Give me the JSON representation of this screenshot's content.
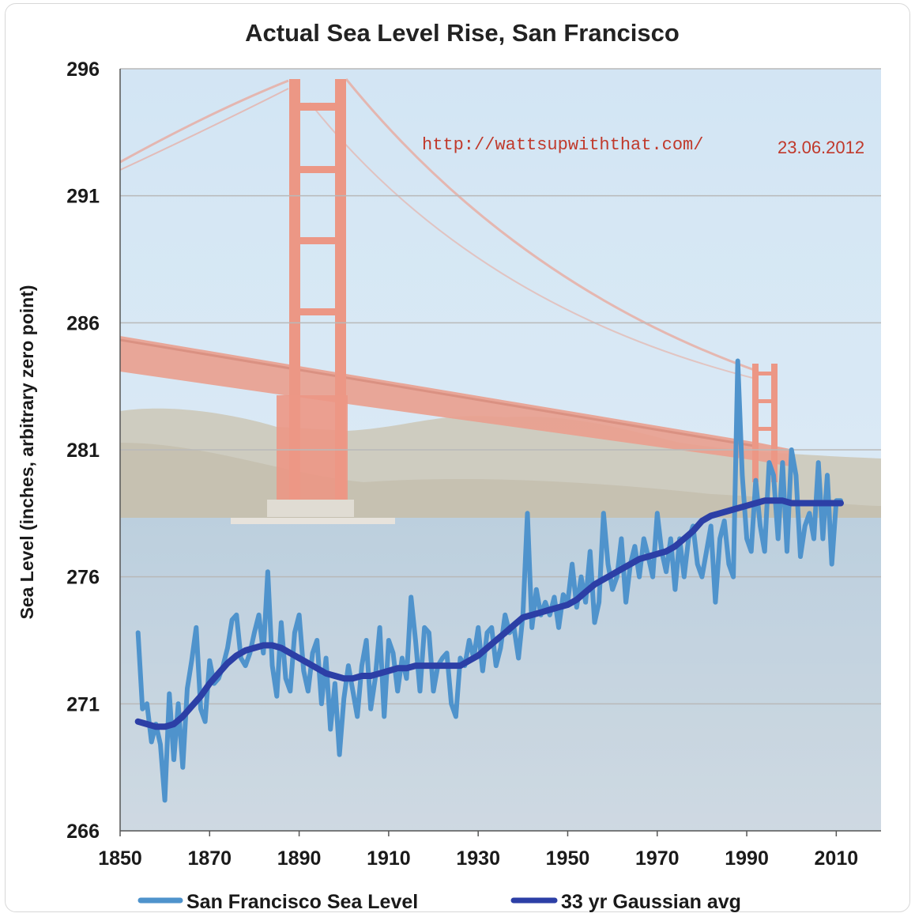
{
  "colors": {
    "raw_series": "#4f93cc",
    "avg_series": "#2c3fa6",
    "grid": "#b9b9b9",
    "annotation": "#c0392b",
    "sky": "#bcd9ef",
    "water": "#a9c0d2",
    "bridge": "#e5735c",
    "hills": "#b7b09a"
  },
  "chart_data": {
    "type": "line",
    "title": "Actual Sea Level Rise, San Francisco",
    "xlabel": "",
    "ylabel": "Sea Level (inches, arbitrary zero point)",
    "xlim": [
      1850,
      2020
    ],
    "ylim": [
      266,
      296
    ],
    "x_ticks": [
      "1850",
      "1870",
      "1890",
      "1910",
      "1930",
      "1950",
      "1970",
      "1990",
      "2010"
    ],
    "y_ticks": [
      "266",
      "271",
      "276",
      "281",
      "286",
      "291",
      "296"
    ],
    "grid": true,
    "legend_position": "bottom",
    "annotations": [
      "http://wattsupwiththat.com/",
      "23.06.2012"
    ],
    "background_image": "golden-gate-bridge-photo",
    "series": [
      {
        "name": "San Francisco Sea Level",
        "x": [
          1854,
          1855,
          1856,
          1857,
          1858,
          1859,
          1860,
          1861,
          1862,
          1863,
          1864,
          1865,
          1866,
          1867,
          1868,
          1869,
          1870,
          1871,
          1872,
          1873,
          1874,
          1875,
          1876,
          1877,
          1878,
          1879,
          1880,
          1881,
          1882,
          1883,
          1884,
          1885,
          1886,
          1887,
          1888,
          1889,
          1890,
          1891,
          1892,
          1893,
          1894,
          1895,
          1896,
          1897,
          1898,
          1899,
          1900,
          1901,
          1902,
          1903,
          1904,
          1905,
          1906,
          1907,
          1908,
          1909,
          1910,
          1911,
          1912,
          1913,
          1914,
          1915,
          1916,
          1917,
          1918,
          1919,
          1920,
          1921,
          1922,
          1923,
          1924,
          1925,
          1926,
          1927,
          1928,
          1929,
          1930,
          1931,
          1932,
          1933,
          1934,
          1935,
          1936,
          1937,
          1938,
          1939,
          1940,
          1941,
          1942,
          1943,
          1944,
          1945,
          1946,
          1947,
          1948,
          1949,
          1950,
          1951,
          1952,
          1953,
          1954,
          1955,
          1956,
          1957,
          1958,
          1959,
          1960,
          1961,
          1962,
          1963,
          1964,
          1965,
          1966,
          1967,
          1968,
          1969,
          1970,
          1971,
          1972,
          1973,
          1974,
          1975,
          1976,
          1977,
          1978,
          1979,
          1980,
          1981,
          1982,
          1983,
          1984,
          1985,
          1986,
          1987,
          1988,
          1989,
          1990,
          1991,
          1992,
          1993,
          1994,
          1995,
          1996,
          1997,
          1998,
          1999,
          2000,
          2001,
          2002,
          2003,
          2004,
          2005,
          2006,
          2007,
          2008,
          2009,
          2010,
          2011
        ],
        "values": [
          273.8,
          270.8,
          271.0,
          269.5,
          270.2,
          269.4,
          267.2,
          271.4,
          268.8,
          271.0,
          268.5,
          271.6,
          272.7,
          274.0,
          270.8,
          270.3,
          272.7,
          271.8,
          272.0,
          272.5,
          273.2,
          274.3,
          274.5,
          272.8,
          272.5,
          273.0,
          273.8,
          274.5,
          273.0,
          276.2,
          272.5,
          271.3,
          274.2,
          272.0,
          271.5,
          273.8,
          274.5,
          272.3,
          271.5,
          273.0,
          273.5,
          271.0,
          272.8,
          270.0,
          271.8,
          269.0,
          271.2,
          272.5,
          271.5,
          270.5,
          272.5,
          273.5,
          270.8,
          272.0,
          274.0,
          270.5,
          273.5,
          273.0,
          271.5,
          272.8,
          272.0,
          275.2,
          273.5,
          271.5,
          274.0,
          273.8,
          271.5,
          272.5,
          272.8,
          273.0,
          271.0,
          270.5,
          272.8,
          272.5,
          273.5,
          272.8,
          274.0,
          272.3,
          273.8,
          274.0,
          272.5,
          273.2,
          274.5,
          273.8,
          274.0,
          272.8,
          274.5,
          278.5,
          274.0,
          275.5,
          274.5,
          275.0,
          274.5,
          275.2,
          274.0,
          275.3,
          275.0,
          276.5,
          274.8,
          276.0,
          275.0,
          277.0,
          274.2,
          275.0,
          278.5,
          276.5,
          275.5,
          276.0,
          277.5,
          275.0,
          276.5,
          277.2,
          276.0,
          277.5,
          276.8,
          276.0,
          278.5,
          277.0,
          276.2,
          277.5,
          275.5,
          277.5,
          276.0,
          277.5,
          278.0,
          276.5,
          276.0,
          277.0,
          278.0,
          275.0,
          277.5,
          278.2,
          276.5,
          276.0,
          284.5,
          280.0,
          277.5,
          277.0,
          279.8,
          278.0,
          277.0,
          280.5,
          280.0,
          277.5,
          280.5,
          277.0,
          281.0,
          280.0,
          276.8,
          278.0,
          278.5,
          277.5,
          280.5,
          277.5,
          280.0,
          276.5,
          279.0,
          279.0
        ]
      },
      {
        "name": "33 yr Gaussian avg",
        "x": [
          1854,
          1856,
          1858,
          1860,
          1862,
          1864,
          1866,
          1868,
          1870,
          1872,
          1874,
          1876,
          1878,
          1880,
          1882,
          1884,
          1886,
          1888,
          1890,
          1892,
          1894,
          1896,
          1898,
          1900,
          1902,
          1904,
          1906,
          1908,
          1910,
          1912,
          1914,
          1916,
          1918,
          1920,
          1922,
          1924,
          1926,
          1928,
          1930,
          1932,
          1934,
          1936,
          1938,
          1940,
          1942,
          1944,
          1946,
          1948,
          1950,
          1952,
          1954,
          1956,
          1958,
          1960,
          1962,
          1964,
          1966,
          1968,
          1970,
          1972,
          1974,
          1976,
          1978,
          1980,
          1982,
          1984,
          1986,
          1988,
          1990,
          1992,
          1994,
          1996,
          1998,
          2000,
          2002,
          2004,
          2006,
          2008,
          2010,
          2011
        ],
        "values": [
          270.3,
          270.2,
          270.1,
          270.1,
          270.2,
          270.5,
          270.9,
          271.3,
          271.8,
          272.2,
          272.6,
          272.9,
          273.1,
          273.2,
          273.3,
          273.3,
          273.2,
          273.0,
          272.8,
          272.6,
          272.4,
          272.2,
          272.1,
          272.0,
          272.0,
          272.1,
          272.1,
          272.2,
          272.3,
          272.4,
          272.4,
          272.5,
          272.5,
          272.5,
          272.5,
          272.5,
          272.5,
          272.7,
          272.9,
          273.2,
          273.5,
          273.8,
          274.1,
          274.4,
          274.5,
          274.6,
          274.7,
          274.8,
          274.9,
          275.1,
          275.4,
          275.7,
          275.9,
          276.1,
          276.3,
          276.5,
          276.7,
          276.8,
          276.9,
          277.0,
          277.2,
          277.5,
          277.8,
          278.2,
          278.4,
          278.5,
          278.6,
          278.7,
          278.8,
          278.9,
          279.0,
          279.0,
          279.0,
          278.9,
          278.9,
          278.9,
          278.9,
          278.9,
          278.9,
          278.9
        ]
      }
    ]
  }
}
